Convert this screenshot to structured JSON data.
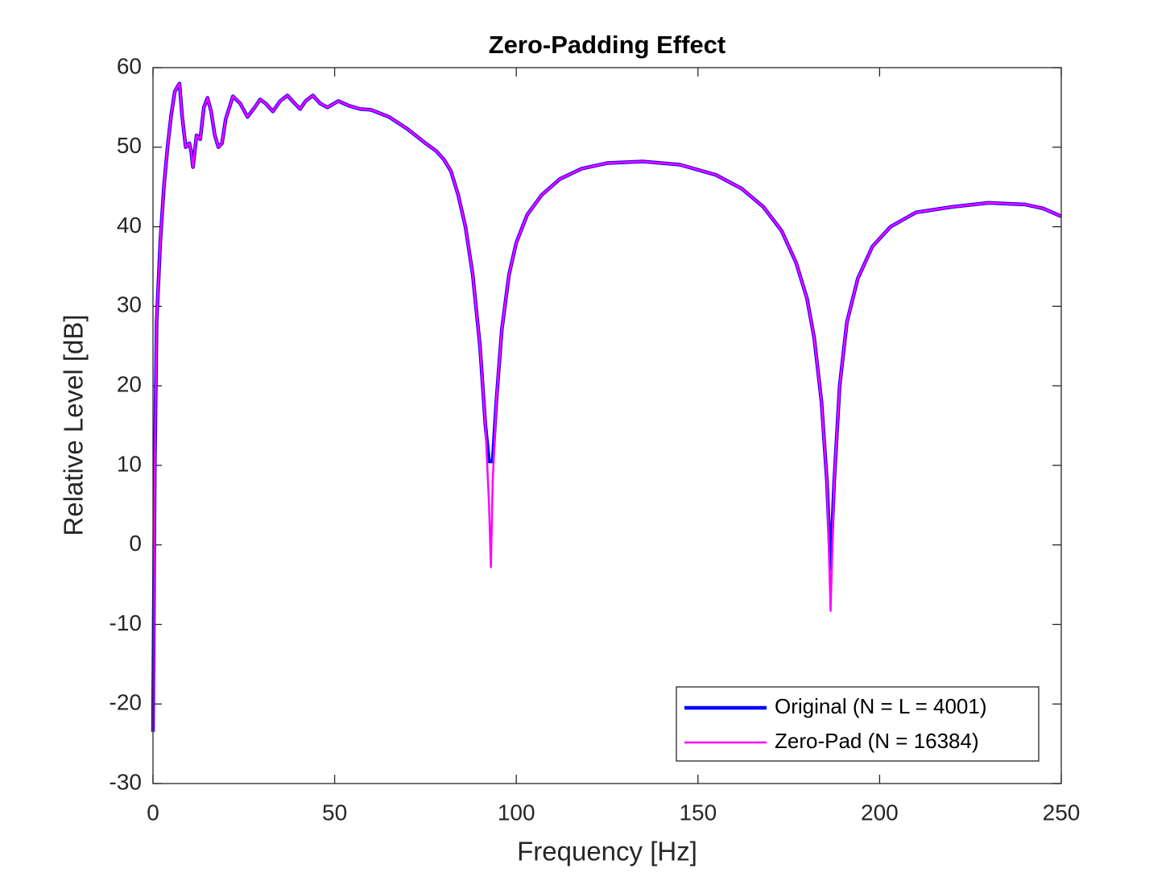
{
  "chart_data": {
    "type": "line",
    "title": "Zero-Padding Effect",
    "xlabel": "Frequency [Hz]",
    "ylabel": "Relative Level [dB]",
    "x": [
      0,
      0.5,
      1,
      2,
      3,
      4,
      5,
      6,
      7,
      7.3,
      8,
      9,
      10,
      10.5,
      11,
      12,
      13,
      14,
      15,
      16,
      17,
      18,
      19,
      20,
      22,
      24,
      26,
      28,
      29.5,
      31,
      33,
      35,
      37,
      39,
      40.5,
      42,
      44,
      46,
      48,
      51,
      54,
      57,
      60,
      65,
      70,
      75,
      78,
      80,
      82,
      84,
      86,
      88,
      90,
      91.5,
      92.5,
      93,
      93.5,
      94.5,
      96,
      98,
      100,
      103,
      107,
      112,
      118,
      125,
      135,
      145,
      155,
      162,
      168,
      173,
      177,
      180,
      182,
      184,
      185.5,
      186.5,
      187.5,
      189,
      191,
      194,
      198,
      203,
      210,
      220,
      230,
      240,
      245,
      250
    ],
    "series": [
      {
        "name": "Original (N = L = 4001)",
        "color": "#0000ff",
        "values": [
          -23.5,
          10,
          28,
          38,
          45,
          50,
          54,
          57,
          57.8,
          58,
          54,
          50,
          50.5,
          49.5,
          47.5,
          51.5,
          51,
          55,
          56.2,
          54.5,
          51.5,
          50,
          50.5,
          53.5,
          56.4,
          55.5,
          53.8,
          55,
          56,
          55.5,
          54.5,
          55.8,
          56.5,
          55.5,
          54.8,
          55.8,
          56.5,
          55.5,
          55,
          55.8,
          55.2,
          54.8,
          54.7,
          53.8,
          52.3,
          50.5,
          49.5,
          48.5,
          47,
          44,
          40,
          34,
          25,
          15,
          10.5,
          10.5,
          10.5,
          18,
          27,
          34,
          38,
          41.5,
          44,
          46,
          47.3,
          48,
          48.2,
          47.8,
          46.5,
          44.8,
          42.5,
          39.5,
          35.5,
          31,
          26,
          18,
          8,
          -3,
          8,
          20,
          28,
          33.5,
          37.5,
          40,
          41.8,
          42.5,
          43,
          42.8,
          42.3,
          41.3
        ]
      },
      {
        "name": "Zero-Pad (N = 16384)",
        "color": "#ff00ff",
        "values": [
          -23.5,
          10,
          28,
          38,
          45,
          50,
          54,
          57,
          57.8,
          58,
          54,
          50,
          50.5,
          49.5,
          47.5,
          51.5,
          51,
          55,
          56.2,
          54.5,
          51.5,
          50,
          50.5,
          53.5,
          56.4,
          55.5,
          53.8,
          55,
          56,
          55.5,
          54.5,
          55.8,
          56.5,
          55.5,
          54.8,
          55.8,
          56.5,
          55.5,
          55,
          55.8,
          55.2,
          54.8,
          54.7,
          53.8,
          52.3,
          50.5,
          49.5,
          48.5,
          47,
          44,
          40,
          34,
          25,
          15,
          5,
          -2.8,
          8,
          18,
          27,
          34,
          38,
          41.5,
          44,
          46,
          47.3,
          48,
          48.2,
          47.8,
          46.5,
          44.8,
          42.5,
          39.5,
          35.5,
          31,
          26,
          18,
          8,
          -8.3,
          8,
          20,
          28,
          33.5,
          37.5,
          40,
          41.8,
          42.5,
          43,
          42.8,
          42.3,
          41.3
        ]
      }
    ],
    "xlim": [
      0,
      250
    ],
    "xticks": [
      0,
      50,
      100,
      150,
      200,
      250
    ],
    "ylim": [
      -30,
      60
    ],
    "yticks": [
      -30,
      -20,
      -10,
      0,
      10,
      20,
      30,
      40,
      50,
      60
    ],
    "grid": false,
    "legend_location": "southeast"
  }
}
